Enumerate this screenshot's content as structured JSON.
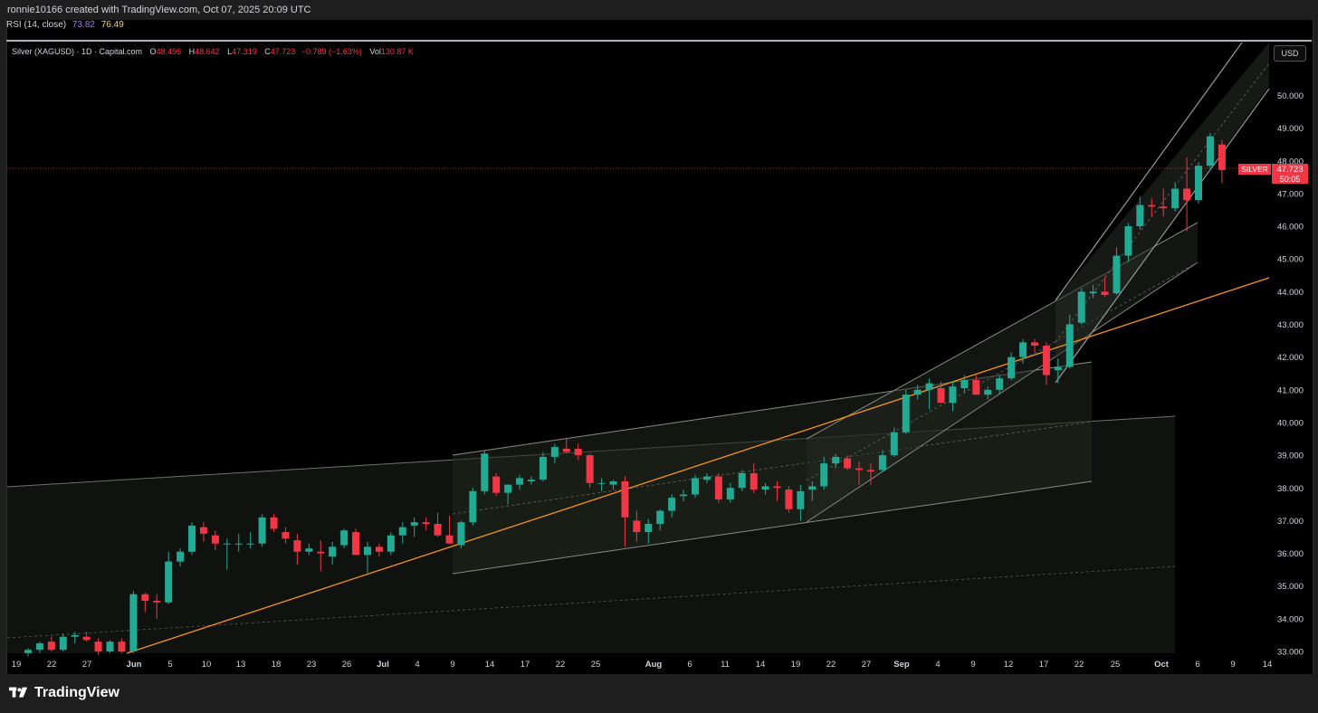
{
  "header": {
    "credit": "ronnie10166 created with TradingView.com, Oct 07, 2025 20:09 UTC"
  },
  "rsi": {
    "label": "RSI (14, close)",
    "value1": "73.82",
    "value2": "76.49"
  },
  "legend": {
    "symbol": "Silver (XAGUSD) · 1D · Capital.com",
    "o_label": "O",
    "o": "48.496",
    "h_label": "H",
    "h": "48.642",
    "l_label": "L",
    "l": "47.319",
    "c_label": "C",
    "c": "47.723",
    "change": "−0.789 (−1.63%)",
    "vol_label": "Vol",
    "vol": "130.87 K"
  },
  "currency": "USD",
  "price_badge": {
    "name": "SILVER",
    "price": "47.723",
    "countdown": "50:05"
  },
  "footer": {
    "brand": "TradingView"
  },
  "colors": {
    "up": "#22ab94",
    "down": "#f23645",
    "bg": "#000000",
    "trendline": "#f7931a"
  },
  "chart_data": {
    "type": "candlestick",
    "y_ticks": [
      "33.000",
      "34.000",
      "35.000",
      "36.000",
      "37.000",
      "38.000",
      "39.000",
      "40.000",
      "41.000",
      "42.000",
      "43.000",
      "44.000",
      "45.000",
      "46.000",
      "47.000",
      "48.000",
      "49.000",
      "50.000"
    ],
    "x_ticks": [
      "19",
      "22",
      "27",
      "Jun",
      "5",
      "10",
      "13",
      "18",
      "23",
      "26",
      "Jul",
      "4",
      "9",
      "14",
      "17",
      "22",
      "25",
      "Aug",
      "6",
      "11",
      "14",
      "19",
      "22",
      "27",
      "Sep",
      "4",
      "9",
      "12",
      "17",
      "22",
      "25",
      "Oct",
      "6",
      "9",
      "14"
    ],
    "ylim": [
      33,
      51.5
    ],
    "last_price": 47.723,
    "candles": [
      {
        "o": 32.95,
        "h": 33.1,
        "l": 32.85,
        "c": 33.05
      },
      {
        "o": 33.05,
        "h": 33.3,
        "l": 32.95,
        "c": 33.25
      },
      {
        "o": 33.3,
        "h": 33.45,
        "l": 33.0,
        "c": 33.05
      },
      {
        "o": 33.05,
        "h": 33.55,
        "l": 33.0,
        "c": 33.45
      },
      {
        "o": 33.45,
        "h": 33.6,
        "l": 33.25,
        "c": 33.5
      },
      {
        "o": 33.45,
        "h": 33.6,
        "l": 33.3,
        "c": 33.35
      },
      {
        "o": 33.3,
        "h": 33.4,
        "l": 32.9,
        "c": 33.0
      },
      {
        "o": 33.0,
        "h": 33.35,
        "l": 32.95,
        "c": 33.3
      },
      {
        "o": 33.3,
        "h": 33.4,
        "l": 32.95,
        "c": 33.0
      },
      {
        "o": 33.0,
        "h": 34.85,
        "l": 32.95,
        "c": 34.75
      },
      {
        "o": 34.75,
        "h": 34.8,
        "l": 34.2,
        "c": 34.55
      },
      {
        "o": 34.55,
        "h": 34.75,
        "l": 34.0,
        "c": 34.5
      },
      {
        "o": 34.5,
        "h": 36.05,
        "l": 34.45,
        "c": 35.75
      },
      {
        "o": 35.75,
        "h": 36.15,
        "l": 35.6,
        "c": 36.05
      },
      {
        "o": 36.05,
        "h": 36.95,
        "l": 35.95,
        "c": 36.85
      },
      {
        "o": 36.8,
        "h": 36.95,
        "l": 36.35,
        "c": 36.6
      },
      {
        "o": 36.55,
        "h": 36.7,
        "l": 36.1,
        "c": 36.3
      },
      {
        "o": 36.3,
        "h": 36.45,
        "l": 35.5,
        "c": 36.3
      },
      {
        "o": 36.3,
        "h": 36.6,
        "l": 36.05,
        "c": 36.3
      },
      {
        "o": 36.3,
        "h": 36.65,
        "l": 36.15,
        "c": 36.3
      },
      {
        "o": 36.3,
        "h": 37.2,
        "l": 36.2,
        "c": 37.1
      },
      {
        "o": 37.1,
        "h": 37.2,
        "l": 36.65,
        "c": 36.75
      },
      {
        "o": 36.65,
        "h": 36.8,
        "l": 36.3,
        "c": 36.45
      },
      {
        "o": 36.4,
        "h": 36.6,
        "l": 35.65,
        "c": 36.05
      },
      {
        "o": 36.05,
        "h": 36.3,
        "l": 35.95,
        "c": 36.15
      },
      {
        "o": 36.05,
        "h": 36.4,
        "l": 35.45,
        "c": 36.0
      },
      {
        "o": 35.9,
        "h": 36.35,
        "l": 35.65,
        "c": 36.2
      },
      {
        "o": 36.25,
        "h": 36.75,
        "l": 36.15,
        "c": 36.7
      },
      {
        "o": 36.65,
        "h": 36.75,
        "l": 35.95,
        "c": 35.95
      },
      {
        "o": 35.95,
        "h": 36.35,
        "l": 35.4,
        "c": 36.2
      },
      {
        "o": 36.2,
        "h": 36.3,
        "l": 35.9,
        "c": 36.05
      },
      {
        "o": 36.05,
        "h": 36.65,
        "l": 35.95,
        "c": 36.55
      },
      {
        "o": 36.55,
        "h": 36.95,
        "l": 36.3,
        "c": 36.8
      },
      {
        "o": 36.85,
        "h": 37.1,
        "l": 36.5,
        "c": 36.95
      },
      {
        "o": 36.95,
        "h": 37.1,
        "l": 36.7,
        "c": 36.9
      },
      {
        "o": 36.9,
        "h": 37.25,
        "l": 36.5,
        "c": 36.55
      },
      {
        "o": 36.55,
        "h": 37.15,
        "l": 36.4,
        "c": 36.3
      },
      {
        "o": 36.25,
        "h": 37.0,
        "l": 36.15,
        "c": 36.95
      },
      {
        "o": 36.95,
        "h": 38.0,
        "l": 36.85,
        "c": 37.9
      },
      {
        "o": 37.9,
        "h": 39.15,
        "l": 37.8,
        "c": 39.05
      },
      {
        "o": 38.35,
        "h": 38.45,
        "l": 37.75,
        "c": 37.85
      },
      {
        "o": 37.85,
        "h": 38.1,
        "l": 37.5,
        "c": 38.1
      },
      {
        "o": 38.1,
        "h": 38.4,
        "l": 37.95,
        "c": 38.3
      },
      {
        "o": 38.2,
        "h": 38.35,
        "l": 38.1,
        "c": 38.25
      },
      {
        "o": 38.25,
        "h": 39.1,
        "l": 38.2,
        "c": 38.95
      },
      {
        "o": 38.95,
        "h": 39.35,
        "l": 38.75,
        "c": 39.25
      },
      {
        "o": 39.2,
        "h": 39.5,
        "l": 39.05,
        "c": 39.1
      },
      {
        "o": 39.2,
        "h": 39.35,
        "l": 38.85,
        "c": 39.0
      },
      {
        "o": 39.0,
        "h": 39.05,
        "l": 38.0,
        "c": 38.15
      },
      {
        "o": 38.15,
        "h": 38.3,
        "l": 37.9,
        "c": 38.15
      },
      {
        "o": 38.1,
        "h": 38.25,
        "l": 37.95,
        "c": 38.2
      },
      {
        "o": 38.2,
        "h": 38.35,
        "l": 36.2,
        "c": 37.1
      },
      {
        "o": 37.0,
        "h": 37.3,
        "l": 36.35,
        "c": 36.65
      },
      {
        "o": 36.65,
        "h": 37.05,
        "l": 36.3,
        "c": 36.9
      },
      {
        "o": 36.9,
        "h": 37.35,
        "l": 36.7,
        "c": 37.3
      },
      {
        "o": 37.3,
        "h": 37.8,
        "l": 37.1,
        "c": 37.7
      },
      {
        "o": 37.75,
        "h": 37.95,
        "l": 37.6,
        "c": 37.8
      },
      {
        "o": 37.8,
        "h": 38.4,
        "l": 37.7,
        "c": 38.3
      },
      {
        "o": 38.25,
        "h": 38.45,
        "l": 38.15,
        "c": 38.35
      },
      {
        "o": 38.35,
        "h": 38.45,
        "l": 37.55,
        "c": 37.65
      },
      {
        "o": 37.65,
        "h": 38.15,
        "l": 37.55,
        "c": 38.0
      },
      {
        "o": 38.0,
        "h": 38.55,
        "l": 37.9,
        "c": 38.45
      },
      {
        "o": 38.45,
        "h": 38.75,
        "l": 37.85,
        "c": 37.95
      },
      {
        "o": 37.95,
        "h": 38.15,
        "l": 37.8,
        "c": 38.05
      },
      {
        "o": 38.05,
        "h": 38.2,
        "l": 37.6,
        "c": 38.0
      },
      {
        "o": 37.95,
        "h": 38.05,
        "l": 37.25,
        "c": 37.35
      },
      {
        "o": 37.35,
        "h": 38.1,
        "l": 37.0,
        "c": 37.9
      },
      {
        "o": 37.95,
        "h": 38.2,
        "l": 37.6,
        "c": 38.05
      },
      {
        "o": 38.05,
        "h": 38.95,
        "l": 37.95,
        "c": 38.75
      },
      {
        "o": 38.75,
        "h": 39.05,
        "l": 38.6,
        "c": 38.95
      },
      {
        "o": 38.9,
        "h": 39.0,
        "l": 38.55,
        "c": 38.6
      },
      {
        "o": 38.6,
        "h": 38.8,
        "l": 38.1,
        "c": 38.55
      },
      {
        "o": 38.55,
        "h": 38.75,
        "l": 38.1,
        "c": 38.5
      },
      {
        "o": 38.55,
        "h": 39.15,
        "l": 38.5,
        "c": 39.0
      },
      {
        "o": 39.0,
        "h": 39.85,
        "l": 38.95,
        "c": 39.7
      },
      {
        "o": 39.7,
        "h": 41.0,
        "l": 39.65,
        "c": 40.85
      },
      {
        "o": 40.85,
        "h": 41.15,
        "l": 40.7,
        "c": 41.0
      },
      {
        "o": 41.0,
        "h": 41.35,
        "l": 40.4,
        "c": 41.2
      },
      {
        "o": 41.05,
        "h": 41.25,
        "l": 40.6,
        "c": 40.6
      },
      {
        "o": 40.6,
        "h": 41.25,
        "l": 40.35,
        "c": 41.1
      },
      {
        "o": 41.05,
        "h": 41.45,
        "l": 40.9,
        "c": 41.3
      },
      {
        "o": 41.3,
        "h": 41.45,
        "l": 40.85,
        "c": 40.85
      },
      {
        "o": 40.85,
        "h": 41.1,
        "l": 40.7,
        "c": 41.0
      },
      {
        "o": 41.0,
        "h": 41.45,
        "l": 40.85,
        "c": 41.35
      },
      {
        "o": 41.35,
        "h": 42.15,
        "l": 41.3,
        "c": 42.0
      },
      {
        "o": 42.0,
        "h": 42.55,
        "l": 41.8,
        "c": 42.45
      },
      {
        "o": 42.45,
        "h": 42.55,
        "l": 42.15,
        "c": 42.35
      },
      {
        "o": 42.35,
        "h": 42.45,
        "l": 41.15,
        "c": 41.45
      },
      {
        "o": 41.6,
        "h": 41.95,
        "l": 41.2,
        "c": 41.7
      },
      {
        "o": 41.7,
        "h": 43.3,
        "l": 41.65,
        "c": 43.0
      },
      {
        "o": 43.05,
        "h": 44.1,
        "l": 43.0,
        "c": 44.0
      },
      {
        "o": 43.95,
        "h": 44.2,
        "l": 43.8,
        "c": 44.0
      },
      {
        "o": 44.0,
        "h": 44.45,
        "l": 43.85,
        "c": 43.9
      },
      {
        "o": 43.95,
        "h": 45.35,
        "l": 43.9,
        "c": 45.1
      },
      {
        "o": 45.1,
        "h": 46.1,
        "l": 44.9,
        "c": 46.0
      },
      {
        "o": 46.0,
        "h": 46.9,
        "l": 45.9,
        "c": 46.65
      },
      {
        "o": 46.65,
        "h": 46.85,
        "l": 46.3,
        "c": 46.6
      },
      {
        "o": 46.6,
        "h": 47.15,
        "l": 46.3,
        "c": 46.55
      },
      {
        "o": 46.55,
        "h": 47.35,
        "l": 46.45,
        "c": 47.15
      },
      {
        "o": 47.15,
        "h": 48.1,
        "l": 45.85,
        "c": 46.8
      },
      {
        "o": 46.8,
        "h": 47.95,
        "l": 46.7,
        "c": 47.85
      },
      {
        "o": 47.85,
        "h": 48.85,
        "l": 47.7,
        "c": 48.75
      },
      {
        "o": 48.5,
        "h": 48.64,
        "l": 47.32,
        "c": 47.72
      }
    ]
  }
}
